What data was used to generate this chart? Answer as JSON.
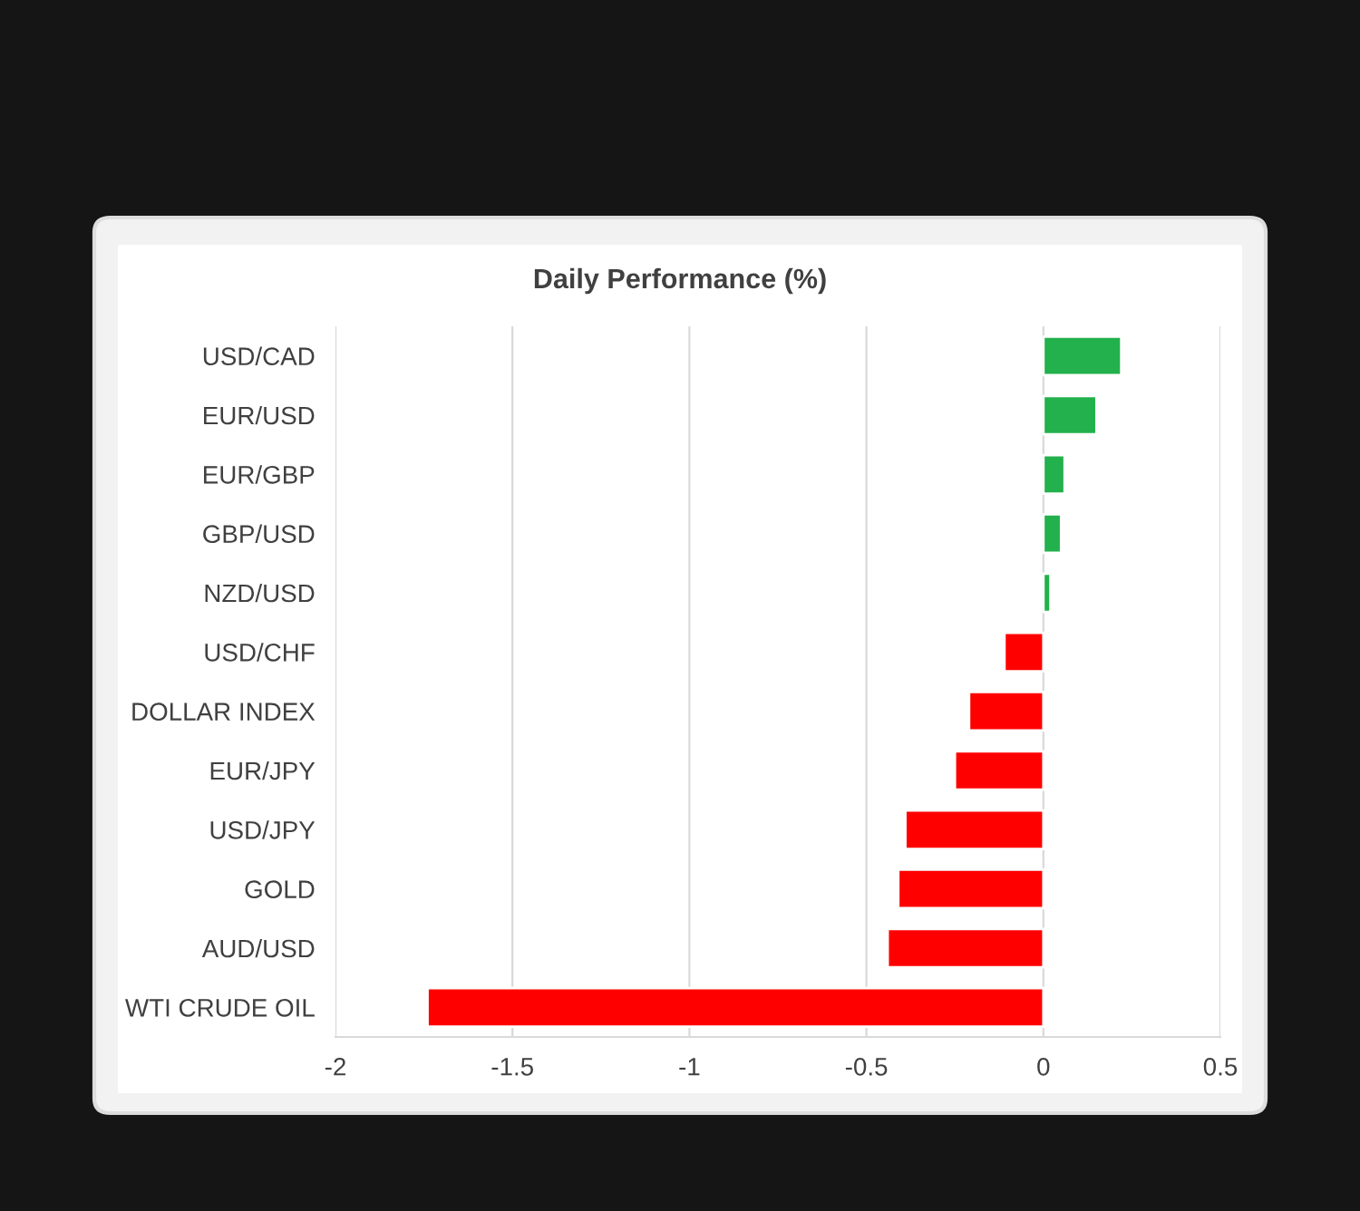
{
  "chart_data": {
    "type": "bar",
    "orientation": "horizontal",
    "title": "Daily Performance (%)",
    "categories": [
      "USD/CAD",
      "EUR/USD",
      "EUR/GBP",
      "GBP/USD",
      "NZD/USD",
      "USD/CHF",
      "DOLLAR INDEX",
      "EUR/JPY",
      "USD/JPY",
      "GOLD",
      "AUD/USD",
      "WTI CRUDE OIL"
    ],
    "values": [
      0.22,
      0.15,
      0.06,
      0.05,
      0.02,
      -0.11,
      -0.21,
      -0.25,
      -0.39,
      -0.41,
      -0.44,
      -1.74
    ],
    "colors": [
      "#22b14c",
      "#22b14c",
      "#22b14c",
      "#22b14c",
      "#22b14c",
      "#ff0000",
      "#ff0000",
      "#ff0000",
      "#ff0000",
      "#ff0000",
      "#ff0000",
      "#ff0000"
    ],
    "xlim": [
      -2,
      0.5
    ],
    "xticks": [
      -2,
      -1.5,
      -1,
      -0.5,
      0,
      0.5
    ],
    "grid": "x",
    "legend": false
  }
}
